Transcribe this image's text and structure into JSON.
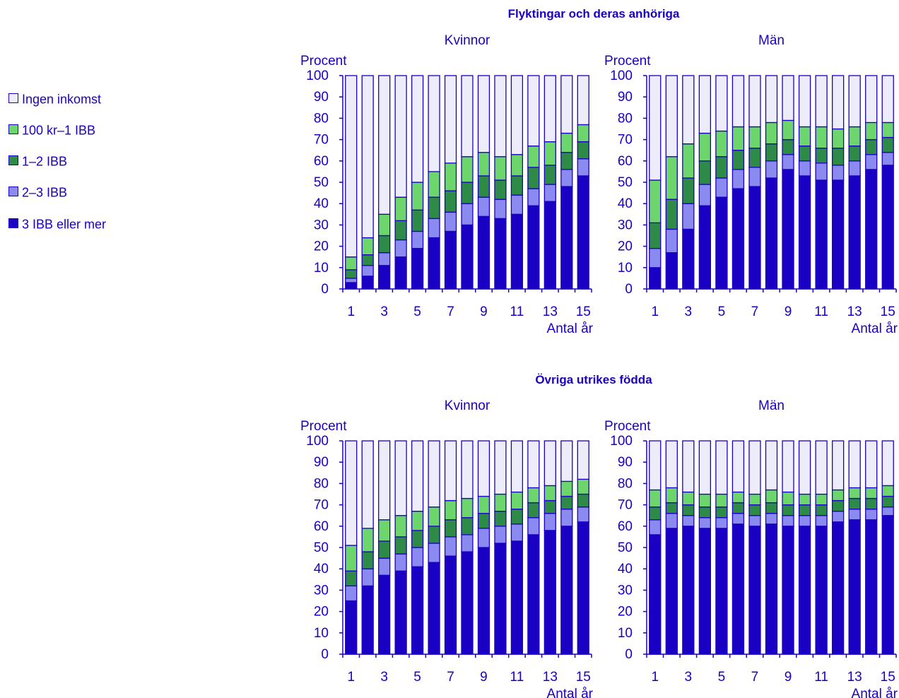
{
  "legend": [
    {
      "label": "Ingen inkomst",
      "color": "#ececfb"
    },
    {
      "label": "100 kr–1 IBB",
      "color": "#6cd66c"
    },
    {
      "label": "1–2 IBB",
      "color": "#2e8b47"
    },
    {
      "label": "2–3 IBB",
      "color": "#8a8af0"
    },
    {
      "label": "3 IBB eller mer",
      "color": "#1a00c2"
    }
  ],
  "groups": [
    {
      "title": "Flyktingar och deras anhöriga"
    },
    {
      "title": "Övriga utrikes födda"
    }
  ],
  "chart_data": [
    {
      "type": "bar",
      "stacked": true,
      "group": "Flyktingar och deras anhöriga",
      "title": "Kvinnor",
      "ylabel": "Procent",
      "xlabel": "Antal år",
      "ylim": [
        0,
        100
      ],
      "yticks": [
        0,
        10,
        20,
        30,
        40,
        50,
        60,
        70,
        80,
        90,
        100
      ],
      "categories": [
        1,
        2,
        3,
        4,
        5,
        6,
        7,
        8,
        9,
        10,
        11,
        12,
        13,
        14,
        15
      ],
      "xtick_labels": [
        "1",
        "3",
        "5",
        "7",
        "9",
        "11",
        "13",
        "15"
      ],
      "series": [
        {
          "name": "3 IBB eller mer",
          "values": [
            3,
            6,
            11,
            15,
            19,
            24,
            27,
            30,
            34,
            33,
            35,
            39,
            41,
            48,
            53
          ]
        },
        {
          "name": "2–3 IBB",
          "values": [
            2,
            5,
            6,
            8,
            8,
            9,
            9,
            10,
            9,
            9,
            9,
            8,
            8,
            8,
            8
          ]
        },
        {
          "name": "1–2 IBB",
          "values": [
            4,
            5,
            8,
            9,
            10,
            10,
            10,
            10,
            10,
            9,
            9,
            10,
            9,
            8,
            8
          ]
        },
        {
          "name": "100 kr–1 IBB",
          "values": [
            6,
            8,
            10,
            11,
            13,
            12,
            13,
            12,
            11,
            11,
            10,
            10,
            11,
            9,
            8
          ]
        },
        {
          "name": "Ingen inkomst",
          "values": [
            85,
            76,
            65,
            57,
            50,
            45,
            41,
            38,
            36,
            38,
            37,
            33,
            31,
            27,
            23
          ]
        }
      ]
    },
    {
      "type": "bar",
      "stacked": true,
      "group": "Flyktingar och deras anhöriga",
      "title": "Män",
      "ylabel": "Procent",
      "xlabel": "Antal år",
      "ylim": [
        0,
        100
      ],
      "yticks": [
        0,
        10,
        20,
        30,
        40,
        50,
        60,
        70,
        80,
        90,
        100
      ],
      "categories": [
        1,
        2,
        3,
        4,
        5,
        6,
        7,
        8,
        9,
        10,
        11,
        12,
        13,
        14,
        15
      ],
      "xtick_labels": [
        "1",
        "3",
        "5",
        "7",
        "9",
        "11",
        "13",
        "15"
      ],
      "series": [
        {
          "name": "3 IBB eller mer",
          "values": [
            10,
            17,
            28,
            39,
            43,
            47,
            48,
            52,
            56,
            53,
            51,
            51,
            53,
            56,
            58
          ]
        },
        {
          "name": "2–3 IBB",
          "values": [
            9,
            11,
            12,
            10,
            9,
            9,
            9,
            8,
            7,
            7,
            8,
            7,
            7,
            7,
            6
          ]
        },
        {
          "name": "1–2 IBB",
          "values": [
            12,
            14,
            12,
            11,
            10,
            9,
            9,
            8,
            7,
            7,
            7,
            8,
            7,
            7,
            7
          ]
        },
        {
          "name": "100 kr–1 IBB",
          "values": [
            20,
            20,
            16,
            13,
            12,
            11,
            10,
            10,
            9,
            9,
            10,
            9,
            9,
            8,
            7
          ]
        },
        {
          "name": "Ingen inkomst",
          "values": [
            49,
            38,
            32,
            27,
            26,
            24,
            24,
            22,
            21,
            24,
            24,
            25,
            24,
            22,
            22
          ]
        }
      ]
    },
    {
      "type": "bar",
      "stacked": true,
      "group": "Övriga utrikes födda",
      "title": "Kvinnor",
      "ylabel": "Procent",
      "xlabel": "Antal år",
      "ylim": [
        0,
        100
      ],
      "yticks": [
        0,
        10,
        20,
        30,
        40,
        50,
        60,
        70,
        80,
        90,
        100
      ],
      "categories": [
        1,
        2,
        3,
        4,
        5,
        6,
        7,
        8,
        9,
        10,
        11,
        12,
        13,
        14,
        15
      ],
      "xtick_labels": [
        "1",
        "3",
        "5",
        "7",
        "9",
        "11",
        "13",
        "15"
      ],
      "series": [
        {
          "name": "3 IBB eller mer",
          "values": [
            25,
            32,
            37,
            39,
            41,
            43,
            46,
            48,
            50,
            52,
            53,
            56,
            58,
            60,
            62
          ]
        },
        {
          "name": "2–3 IBB",
          "values": [
            7,
            8,
            8,
            8,
            9,
            9,
            9,
            8,
            9,
            8,
            8,
            8,
            8,
            8,
            7
          ]
        },
        {
          "name": "1–2 IBB",
          "values": [
            7,
            8,
            8,
            8,
            8,
            8,
            8,
            8,
            7,
            7,
            7,
            7,
            6,
            6,
            6
          ]
        },
        {
          "name": "100 kr–1 IBB",
          "values": [
            12,
            11,
            10,
            10,
            9,
            9,
            9,
            9,
            8,
            8,
            8,
            7,
            7,
            7,
            7
          ]
        },
        {
          "name": "Ingen inkomst",
          "values": [
            49,
            41,
            37,
            35,
            33,
            31,
            28,
            27,
            26,
            25,
            24,
            22,
            21,
            19,
            18
          ]
        }
      ]
    },
    {
      "type": "bar",
      "stacked": true,
      "group": "Övriga utrikes födda",
      "title": "Män",
      "ylabel": "Procent",
      "xlabel": "Antal år",
      "ylim": [
        0,
        100
      ],
      "yticks": [
        0,
        10,
        20,
        30,
        40,
        50,
        60,
        70,
        80,
        90,
        100
      ],
      "categories": [
        1,
        2,
        3,
        4,
        5,
        6,
        7,
        8,
        9,
        10,
        11,
        12,
        13,
        14,
        15
      ],
      "xtick_labels": [
        "1",
        "3",
        "5",
        "7",
        "9",
        "11",
        "13",
        "15"
      ],
      "series": [
        {
          "name": "3 IBB eller mer",
          "values": [
            56,
            59,
            60,
            59,
            59,
            61,
            60,
            61,
            60,
            60,
            60,
            62,
            63,
            63,
            65
          ]
        },
        {
          "name": "2–3 IBB",
          "values": [
            7,
            7,
            5,
            5,
            5,
            5,
            5,
            5,
            5,
            5,
            5,
            5,
            5,
            5,
            4
          ]
        },
        {
          "name": "1–2 IBB",
          "values": [
            6,
            5,
            5,
            5,
            5,
            5,
            5,
            5,
            5,
            5,
            5,
            5,
            5,
            5,
            5
          ]
        },
        {
          "name": "100 kr–1 IBB",
          "values": [
            8,
            7,
            6,
            6,
            6,
            5,
            5,
            6,
            6,
            5,
            5,
            5,
            5,
            5,
            5
          ]
        },
        {
          "name": "Ingen inkomst",
          "values": [
            23,
            22,
            24,
            25,
            25,
            24,
            25,
            23,
            24,
            25,
            25,
            23,
            22,
            22,
            21
          ]
        }
      ]
    }
  ]
}
